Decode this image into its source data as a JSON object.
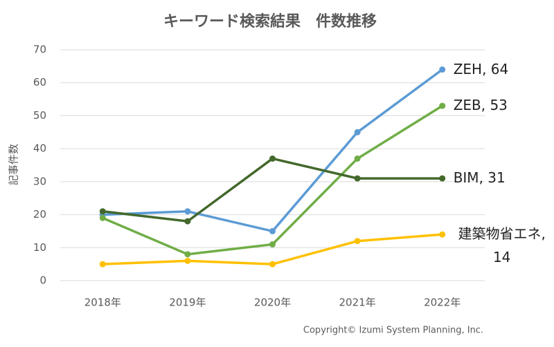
{
  "chart_data": {
    "type": "line",
    "title": "キーワード検索結果　件数推移",
    "y_label": "記事件数",
    "categories": [
      "2018年",
      "2019年",
      "2020年",
      "2021年",
      "2022年"
    ],
    "series": [
      {
        "name": "ZEH",
        "color": "#5b9bd5",
        "values": [
          20,
          21,
          15,
          45,
          64
        ],
        "value_labels": [
          null,
          null,
          null,
          null,
          "ZEH, 64"
        ]
      },
      {
        "name": "ZEB",
        "color": "#70ad47",
        "values": [
          19,
          8,
          11,
          37,
          53
        ],
        "value_labels": [
          null,
          null,
          null,
          null,
          "ZEB, 53"
        ]
      },
      {
        "name": "BIM",
        "color": "#43682b",
        "values": [
          21,
          18,
          37,
          31,
          31
        ],
        "value_labels": [
          null,
          null,
          null,
          null,
          "BIM, 31"
        ]
      },
      {
        "name": "建築物省エネ",
        "color": "#ffc000",
        "values": [
          5,
          6,
          5,
          12,
          14
        ],
        "value_labels": [
          null,
          null,
          null,
          null,
          "建築物省エネ, 14"
        ]
      }
    ],
    "ylim": [
      0,
      70
    ],
    "yticks": [
      0,
      10,
      20,
      30,
      40,
      50,
      60,
      70
    ],
    "grid": true,
    "copyright": "Copyright© Izumi System Planning, Inc."
  }
}
